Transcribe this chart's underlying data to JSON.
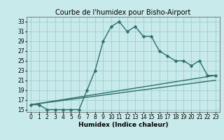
{
  "title": "Courbe de l'humidex pour Bisho-Airport",
  "xlabel": "Humidex (Indice chaleur)",
  "xlim": [
    -0.5,
    23.5
  ],
  "ylim": [
    14.5,
    34
  ],
  "xticks": [
    0,
    1,
    2,
    3,
    4,
    5,
    6,
    7,
    8,
    9,
    10,
    11,
    12,
    13,
    14,
    15,
    16,
    17,
    18,
    19,
    20,
    21,
    22,
    23
  ],
  "yticks": [
    15,
    17,
    19,
    21,
    23,
    25,
    27,
    29,
    31,
    33
  ],
  "background_color": "#c8eaea",
  "grid_color": "#9ecece",
  "line_color": "#2e6e6e",
  "line1_x": [
    0,
    1,
    2,
    3,
    4,
    5,
    6,
    7,
    8,
    9,
    10,
    11,
    12,
    13,
    14,
    15,
    16,
    17,
    18,
    19,
    20,
    21,
    22,
    23
  ],
  "line1_y": [
    16,
    16,
    15,
    15,
    15,
    15,
    15,
    19,
    23,
    29,
    32,
    33,
    31,
    32,
    30,
    30,
    27,
    26,
    25,
    25,
    24,
    25,
    22,
    22
  ],
  "line2_x": [
    0,
    23
  ],
  "line2_y": [
    16,
    22
  ],
  "line3_x": [
    0,
    23
  ],
  "line3_y": [
    16,
    21
  ],
  "marker": "D",
  "markersize": 2.5,
  "linewidth": 1.0,
  "title_fontsize": 7,
  "label_fontsize": 6.5,
  "tick_fontsize": 5.5
}
